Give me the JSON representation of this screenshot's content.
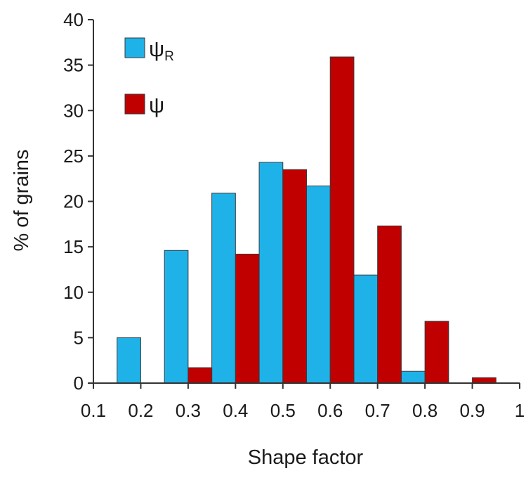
{
  "chart_data": {
    "type": "bar",
    "title": "",
    "xlabel": "Shape factor",
    "ylabel": "% of grains",
    "xlim": [
      0.1,
      1.0
    ],
    "ylim": [
      0,
      40
    ],
    "xticks": [
      "0.1",
      "0.2",
      "0.3",
      "0.4",
      "0.5",
      "0.6",
      "0.7",
      "0.8",
      "0.9",
      "1"
    ],
    "yticks": [
      "0",
      "5",
      "10",
      "15",
      "20",
      "25",
      "30",
      "35",
      "40"
    ],
    "bin_width": 0.05,
    "legend_position": "top-left",
    "grid": false,
    "series": [
      {
        "name": "ψR",
        "legend_main": "ψ",
        "legend_sub": "R",
        "color": "#1FB2E8",
        "x": [
          0.175,
          0.275,
          0.375,
          0.475,
          0.575,
          0.675,
          0.775
        ],
        "values": [
          5.0,
          14.6,
          20.9,
          24.3,
          21.7,
          11.9,
          1.3
        ]
      },
      {
        "name": "ψ",
        "legend_main": "ψ",
        "legend_sub": "",
        "color": "#C00000",
        "x": [
          0.325,
          0.425,
          0.525,
          0.625,
          0.725,
          0.825,
          0.925
        ],
        "values": [
          1.7,
          14.2,
          23.5,
          35.9,
          17.3,
          6.8,
          0.6
        ]
      }
    ]
  }
}
